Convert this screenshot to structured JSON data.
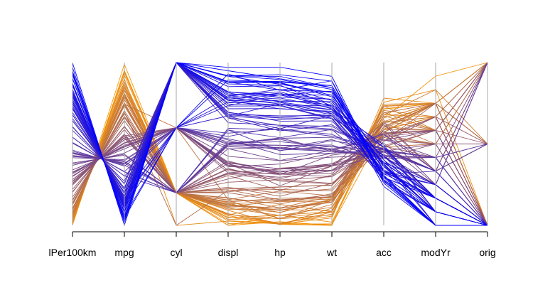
{
  "chart_data": {
    "type": "line",
    "subtype": "parallel-coordinates",
    "title": "",
    "xlabel": "",
    "ylabel": "",
    "variables": [
      "lPer100km",
      "mpg",
      "cyl",
      "displ",
      "hp",
      "wt",
      "acc",
      "modYr",
      "orig"
    ],
    "value_scale": "each variable scaled to [0, 1] (min at bottom, max at top)",
    "line_count": 120,
    "color_gradient": {
      "low_mpg": "#0000ff",
      "high_mpg": "#ff9a00"
    },
    "axis_color": "#a8a8a8",
    "grid": false,
    "legend": "none"
  }
}
